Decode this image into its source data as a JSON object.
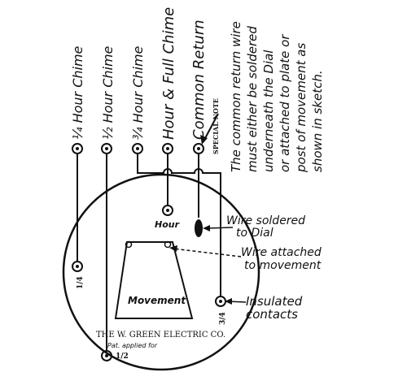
{
  "terminals": [
    {
      "label": "¼ Hour Chime"
    },
    {
      "label": "½ Hour Chime"
    },
    {
      "label": "¾ Hour Chime"
    },
    {
      "label": "Hour & Full Chime"
    },
    {
      "label": "Common Return"
    }
  ],
  "special_note": {
    "tag": "SPECIAL NOTE",
    "lines": [
      "The common return wire",
      "must either be soldered",
      "underneath the Dial",
      "or attached to plate or",
      "post of movement as",
      "shown in sketch."
    ]
  },
  "dial": {
    "hour_label": "Hour",
    "quarter_label": "1/4",
    "half_label": "1/2",
    "three_quarter_label": "3/4",
    "movement_label": "Movement",
    "maker_label": "THE W. GREEN ELECTRIC CO.",
    "patent_label": "Pat. applied for"
  },
  "annotations": {
    "wire_soldered": [
      "Wire soldered",
      "to Dial"
    ],
    "wire_attached": [
      "Wire attached",
      "to movement"
    ],
    "insulated": [
      "Insulated",
      "contacts"
    ]
  },
  "colors": {
    "ink": "#111111",
    "paper": "#ffffff"
  }
}
